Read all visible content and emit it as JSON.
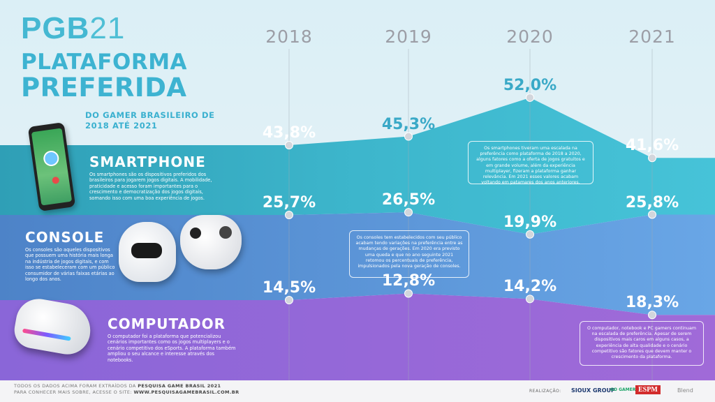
{
  "logo": {
    "text": "PGB",
    "number": "21"
  },
  "title": {
    "line1": "PLATAFORMA",
    "line2": "PREFERIDA"
  },
  "subtitle": "DO GAMER BRASILEIRO DE 2018 ATÉ 2021",
  "years": [
    "2018",
    "2019",
    "2020",
    "2021"
  ],
  "categories": {
    "smartphone": {
      "title": "SMARTPHONE",
      "text": "Os smartphones são os dispositivos preferidos dos brasileiros para jogarem jogos digitais. A mobilidade, praticidade e acesso foram importantes para o crescimento e democratização dos jogos digitais, somando isso com uma boa experiência de jogos."
    },
    "console": {
      "title": "CONSOLE",
      "text": "Os consoles são aqueles dispositivos que possuem uma história mais longa na indústria de jogos digitais, e com isso se estabeleceram com um público consumidor de várias faixas etárias ao longo dos anos."
    },
    "computador": {
      "title": "COMPUTADOR",
      "text": "O computador foi a plataforma que potencializou cenários importantes como os jogos multiplayers e o cenário competitivo dos eSports. A plataforma também ampliou o seu alcance e interesse através dos notebooks."
    }
  },
  "notes": {
    "smartphone": "Os smartphones tiveram uma escalada na preferência como plataforma de 2018 a 2020, alguns fatores como a oferta de jogos gratuitos e em grande volume, além da experiência multiplayer, fizeram a plataforma ganhar relevância. Em 2021 esses valores acabam voltando em patamares dos anos anteriores.",
    "console": "Os consoles tem estabelecidos com seu público acabam tendo variações na preferência entre as mudanças de gerações. Em 2020 era previsto uma queda e que no ano seguinte 2021 retomou os percentuais de preferência, impulsionados pela nova geração de consoles.",
    "computador": "O computador, notebook e PC gamers continuam na escalada de preferência. Apesar de serem dispositivos mais caros em alguns casos, a experiência de alta qualidade e o cenário competitivo são fatores que devem manter o crescimento da plataforma."
  },
  "chart_data": {
    "type": "area",
    "x": [
      "2018",
      "2019",
      "2020",
      "2021"
    ],
    "series": [
      {
        "name": "SMARTPHONE",
        "values": [
          43.8,
          45.3,
          52.0,
          41.6
        ],
        "labels": [
          "43,8%",
          "45,3%",
          "52,0%",
          "41,6%"
        ],
        "color": "#3fb6cf"
      },
      {
        "name": "CONSOLE",
        "values": [
          25.7,
          26.5,
          19.9,
          25.8
        ],
        "labels": [
          "25,7%",
          "26,5%",
          "19,9%",
          "25,8%"
        ],
        "color": "#5ea0e0"
      },
      {
        "name": "COMPUTADOR",
        "values": [
          14.5,
          12.8,
          14.2,
          18.3
        ],
        "labels": [
          "14,5%",
          "12,8%",
          "14,2%",
          "18,3%"
        ],
        "color": "#9467d6"
      }
    ]
  },
  "footer": {
    "line1_prefix": "TODOS OS DADOS ACIMA FORAM EXTRAÍDOS DA ",
    "line1_bold": "PESQUISA GAME BRASIL 2021",
    "line2_prefix": "PARA CONHECER MAIS SOBRE, ACESSE O SITE: ",
    "line2_bold": "WWW.PESQUISAGAMEBRASIL.COM.BR"
  },
  "realizacao": "REALIZAÇÃO:",
  "sponsors": [
    "SIOUX GROUP",
    "GO GAMERS",
    "ESPM",
    "Blend"
  ]
}
